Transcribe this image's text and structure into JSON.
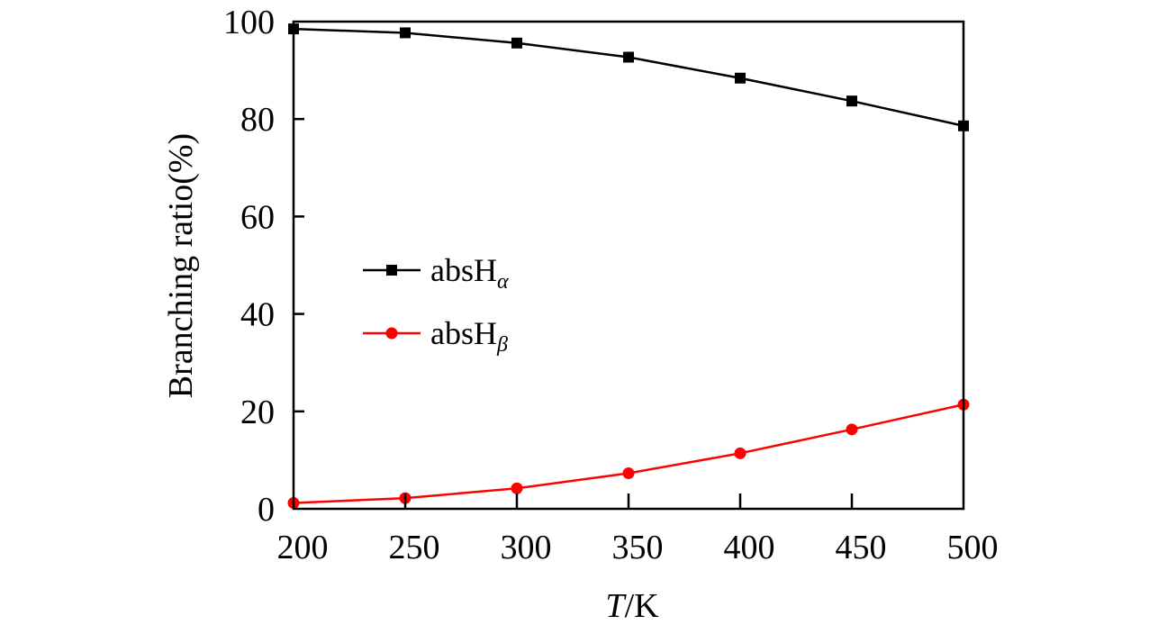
{
  "chart_data": {
    "type": "line",
    "xlabel_italic": "T",
    "xlabel_unit": "/K",
    "ylabel": "Branching ratio(%)",
    "xlim": [
      200,
      500
    ],
    "ylim": [
      0,
      100
    ],
    "xticks": [
      200,
      250,
      300,
      350,
      400,
      450,
      500
    ],
    "yticks": [
      0,
      20,
      40,
      60,
      80,
      100
    ],
    "grid": false,
    "legend_placement": "center-left",
    "x": [
      200,
      250,
      300,
      350,
      400,
      450,
      500
    ],
    "series": [
      {
        "name": "absH",
        "subscript": "α",
        "color": "#000000",
        "marker": "square",
        "values": [
          98.5,
          97.7,
          95.6,
          92.7,
          88.4,
          83.7,
          78.6
        ]
      },
      {
        "name": "absH",
        "subscript": "β",
        "color": "#ff0000",
        "marker": "circle",
        "values": [
          1.2,
          2.2,
          4.2,
          7.3,
          11.4,
          16.3,
          21.4
        ]
      }
    ]
  }
}
